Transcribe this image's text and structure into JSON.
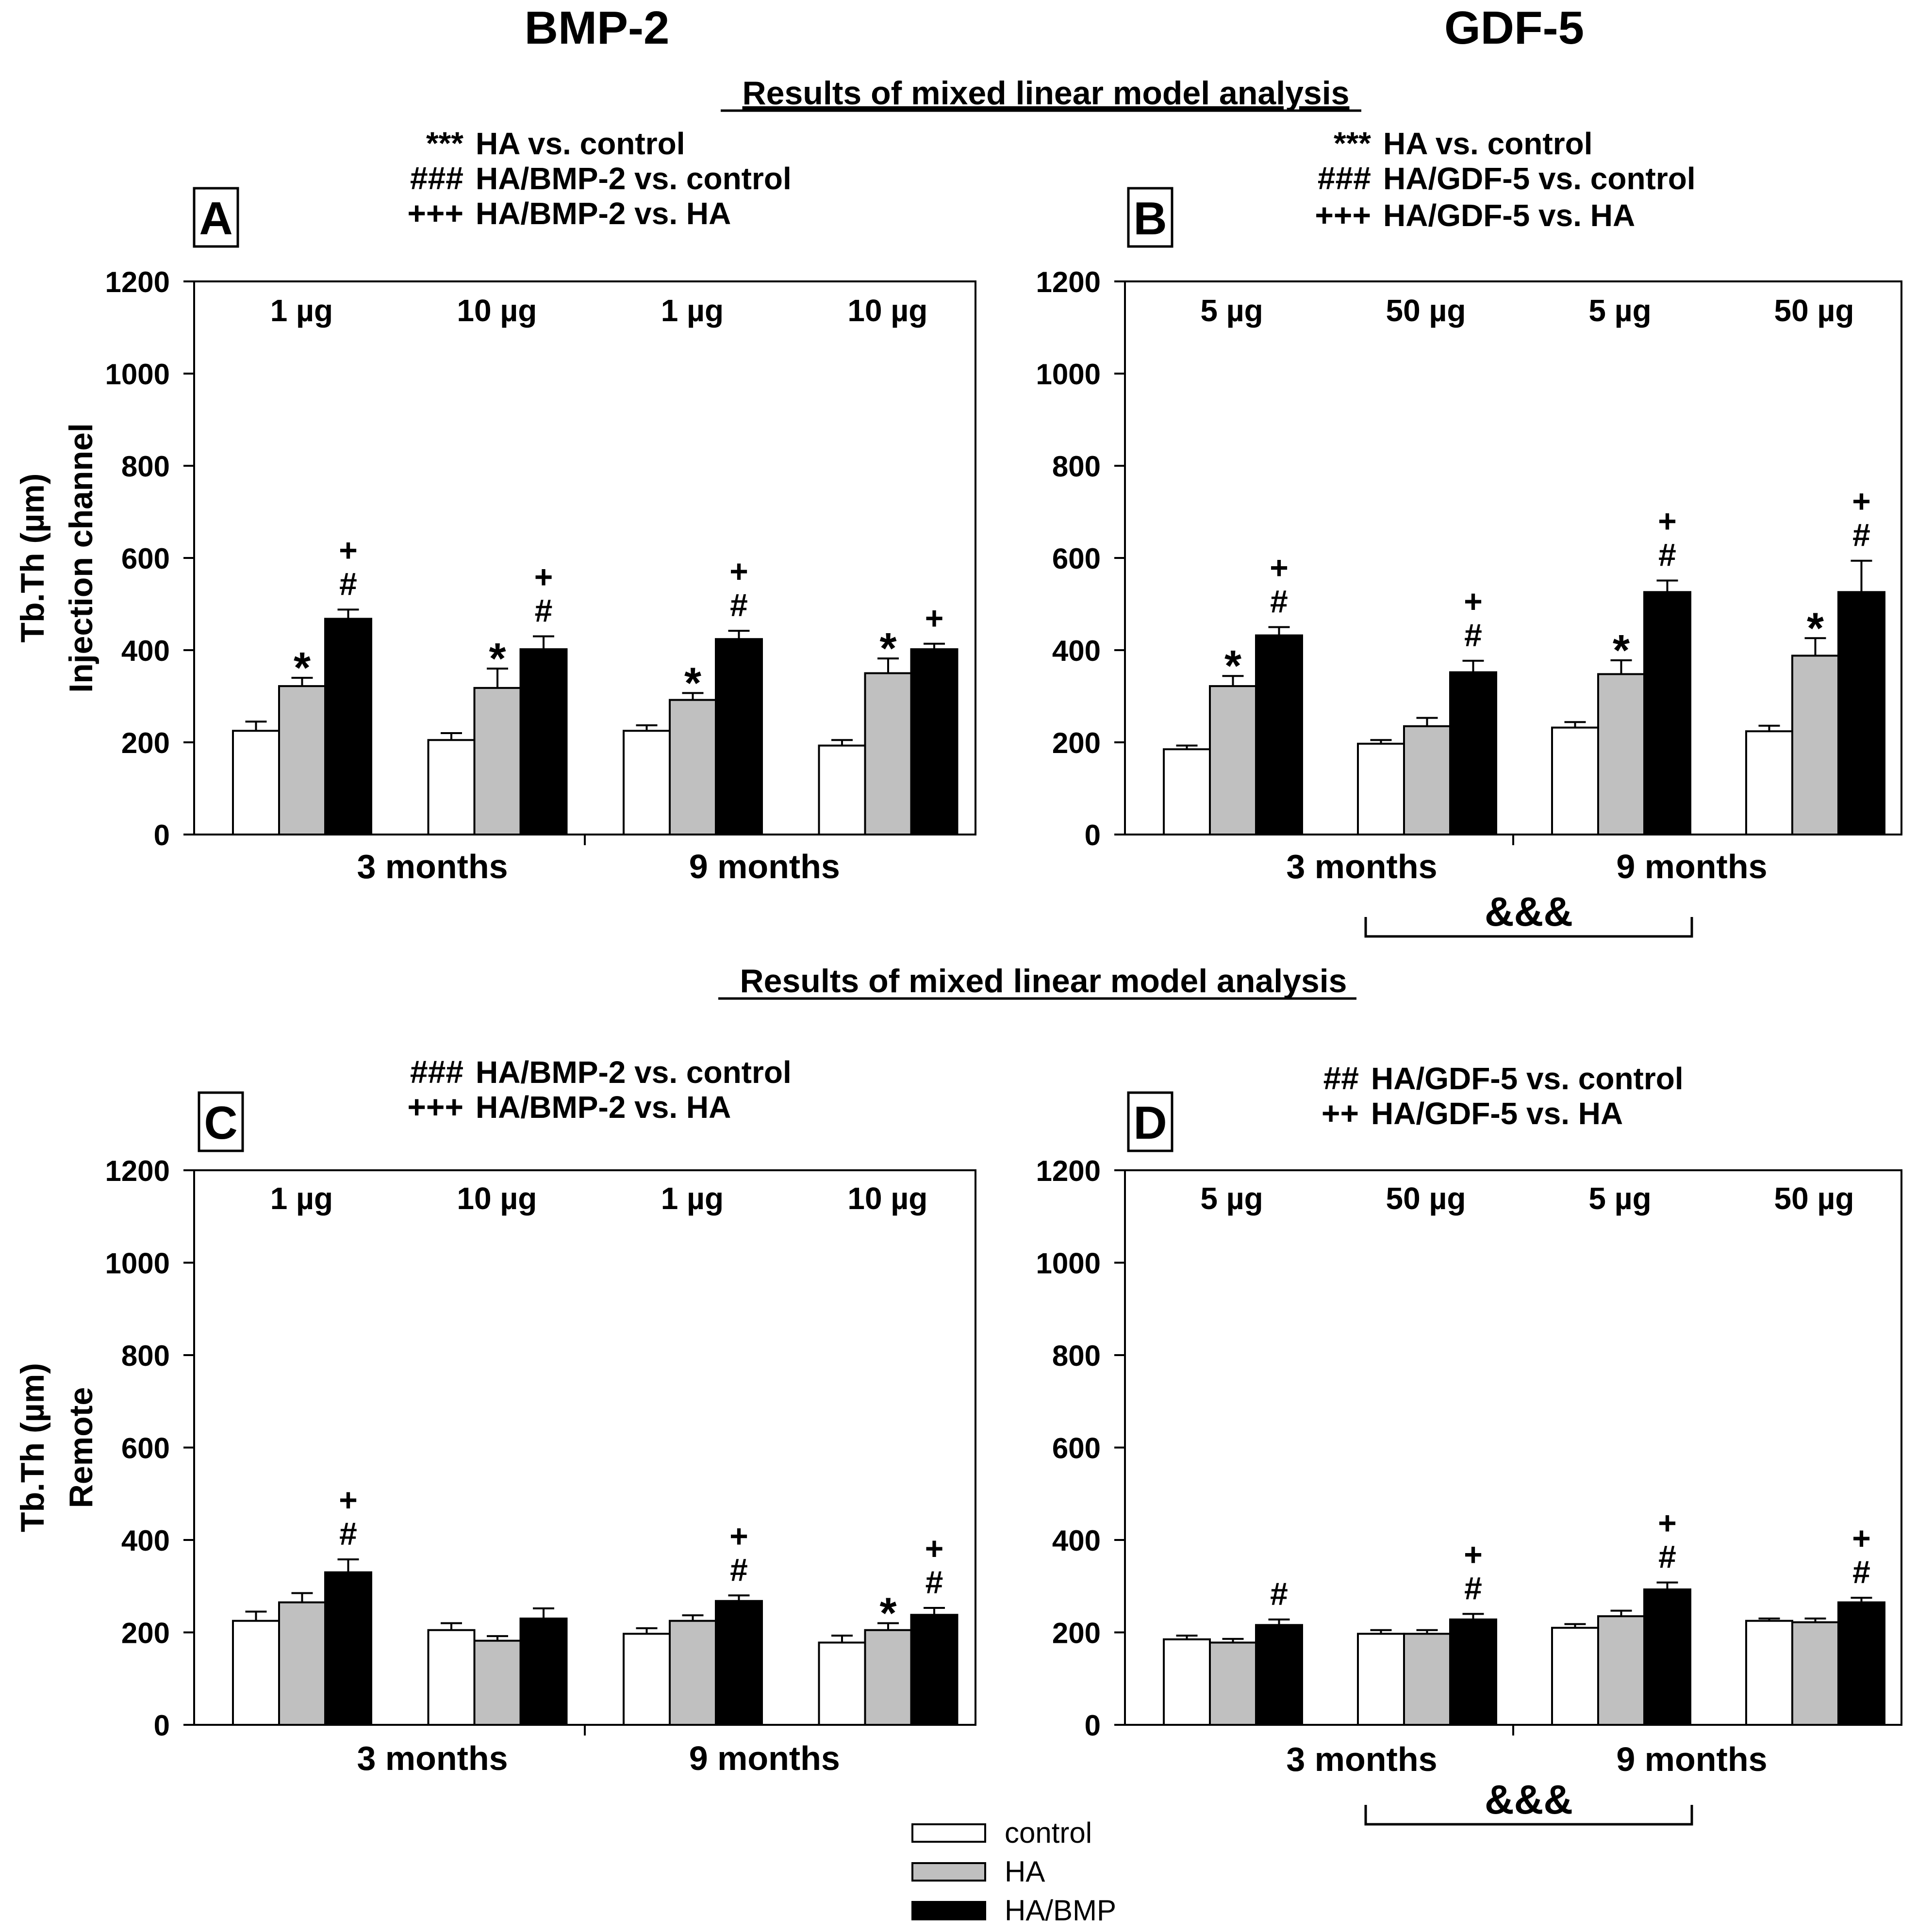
{
  "figure": {
    "column_titles": [
      "BMP-2",
      "GDF-5"
    ],
    "mixed_model_heading": "Results of mixed linear model analysis",
    "legend": [
      {
        "label": "control",
        "color": "#ffffff"
      },
      {
        "label": "HA",
        "color": "#c0c0c0"
      },
      {
        "label": "HA/BMP",
        "color": "#000000"
      }
    ]
  },
  "chart_data": [
    {
      "panel": "A",
      "type": "bar",
      "ylabel": [
        "Tb.Th (µm)",
        "Injection channel"
      ],
      "ylim": [
        0,
        1200
      ],
      "yticks": [
        0,
        200,
        400,
        600,
        800,
        1000,
        1200
      ],
      "groups": [
        "3 months",
        "9 months"
      ],
      "doses": [
        "1 µg",
        "10 µg",
        "1 µg",
        "10 µg"
      ],
      "series": [
        {
          "name": "control",
          "values": [
            225,
            205,
            225,
            193
          ],
          "errors": [
            20,
            15,
            12,
            12
          ]
        },
        {
          "name": "HA",
          "values": [
            322,
            318,
            292,
            350
          ],
          "errors": [
            18,
            42,
            15,
            32
          ]
        },
        {
          "name": "HA/BMP",
          "values": [
            468,
            402,
            424,
            402
          ],
          "errors": [
            20,
            28,
            18,
            12
          ]
        }
      ],
      "markers": [
        {
          "cluster": 0,
          "series": "HA",
          "text": [
            "*"
          ]
        },
        {
          "cluster": 0,
          "series": "HA/BMP",
          "text": [
            "+",
            "#"
          ]
        },
        {
          "cluster": 1,
          "series": "HA",
          "text": [
            "*"
          ]
        },
        {
          "cluster": 1,
          "series": "HA/BMP",
          "text": [
            "+",
            "#"
          ]
        },
        {
          "cluster": 2,
          "series": "HA",
          "text": [
            "*"
          ]
        },
        {
          "cluster": 2,
          "series": "HA/BMP",
          "text": [
            "+",
            "#"
          ]
        },
        {
          "cluster": 3,
          "series": "HA",
          "text": [
            "*"
          ]
        },
        {
          "cluster": 3,
          "series": "HA/BMP",
          "text": [
            "+"
          ]
        }
      ],
      "stats": [
        {
          "symbol": "***",
          "text": "HA vs. control"
        },
        {
          "symbol": "###",
          "text": "HA/BMP-2 vs. control"
        },
        {
          "symbol": "+++",
          "text": "HA/BMP-2 vs. HA"
        }
      ],
      "bracket": null
    },
    {
      "panel": "B",
      "type": "bar",
      "ylabel": [],
      "ylim": [
        0,
        1200
      ],
      "yticks": [
        0,
        200,
        400,
        600,
        800,
        1000,
        1200
      ],
      "groups": [
        "3 months",
        "9 months"
      ],
      "doses": [
        "5 µg",
        "50 µg",
        "5 µg",
        "50 µg"
      ],
      "series": [
        {
          "name": "control",
          "values": [
            185,
            197,
            232,
            224
          ],
          "errors": [
            8,
            8,
            12,
            12
          ]
        },
        {
          "name": "HA",
          "values": [
            322,
            235,
            348,
            388
          ],
          "errors": [
            22,
            18,
            30,
            38
          ]
        },
        {
          "name": "HA/BMP",
          "values": [
            432,
            352,
            526,
            526
          ],
          "errors": [
            18,
            25,
            25,
            68
          ]
        }
      ],
      "markers": [
        {
          "cluster": 0,
          "series": "HA",
          "text": [
            "*"
          ]
        },
        {
          "cluster": 0,
          "series": "HA/BMP",
          "text": [
            "+",
            "#"
          ]
        },
        {
          "cluster": 1,
          "series": "HA/BMP",
          "text": [
            "+",
            "#"
          ]
        },
        {
          "cluster": 2,
          "series": "HA",
          "text": [
            "*"
          ]
        },
        {
          "cluster": 2,
          "series": "HA/BMP",
          "text": [
            "+",
            "#"
          ]
        },
        {
          "cluster": 3,
          "series": "HA",
          "text": [
            "*"
          ]
        },
        {
          "cluster": 3,
          "series": "HA/BMP",
          "text": [
            "+",
            "#"
          ]
        }
      ],
      "stats": [
        {
          "symbol": "***",
          "text": "HA vs. control"
        },
        {
          "symbol": "###",
          "text": "HA/GDF-5 vs. control"
        },
        {
          "symbol": "+++",
          "text": "HA/GDF-5 vs. HA"
        }
      ],
      "bracket": "&&&"
    },
    {
      "panel": "C",
      "type": "bar",
      "ylabel": [
        "Tb.Th (µm)",
        "Remote"
      ],
      "ylim": [
        0,
        1200
      ],
      "yticks": [
        0,
        200,
        400,
        600,
        800,
        1000,
        1200
      ],
      "groups": [
        "3 months",
        "9 months"
      ],
      "doses": [
        "1 µg",
        "10 µg",
        "1 µg",
        "10 µg"
      ],
      "series": [
        {
          "name": "control",
          "values": [
            225,
            205,
            197,
            178
          ],
          "errors": [
            20,
            15,
            12,
            15
          ]
        },
        {
          "name": "HA",
          "values": [
            265,
            182,
            225,
            205
          ],
          "errors": [
            20,
            10,
            12,
            15
          ]
        },
        {
          "name": "HA/BMP",
          "values": [
            330,
            230,
            268,
            238
          ],
          "errors": [
            28,
            22,
            12,
            15
          ]
        }
      ],
      "markers": [
        {
          "cluster": 0,
          "series": "HA/BMP",
          "text": [
            "+",
            "#"
          ]
        },
        {
          "cluster": 2,
          "series": "HA/BMP",
          "text": [
            "+",
            "#"
          ]
        },
        {
          "cluster": 3,
          "series": "HA",
          "text": [
            "*"
          ]
        },
        {
          "cluster": 3,
          "series": "HA/BMP",
          "text": [
            "+",
            "#"
          ]
        }
      ],
      "stats": [
        {
          "symbol": "###",
          "text": "HA/BMP-2 vs. control"
        },
        {
          "symbol": "+++",
          "text": "HA/BMP-2 vs. HA"
        }
      ],
      "bracket": null
    },
    {
      "panel": "D",
      "type": "bar",
      "ylabel": [],
      "ylim": [
        0,
        1200
      ],
      "yticks": [
        0,
        200,
        400,
        600,
        800,
        1000,
        1200
      ],
      "groups": [
        "3 months",
        "9 months"
      ],
      "doses": [
        "5 µg",
        "50 µg",
        "5 µg",
        "50 µg"
      ],
      "series": [
        {
          "name": "control",
          "values": [
            185,
            197,
            210,
            225
          ],
          "errors": [
            8,
            8,
            8,
            5
          ]
        },
        {
          "name": "HA",
          "values": [
            178,
            197,
            235,
            222
          ],
          "errors": [
            8,
            8,
            12,
            8
          ]
        },
        {
          "name": "HA/BMP",
          "values": [
            216,
            228,
            293,
            265
          ],
          "errors": [
            12,
            12,
            15,
            10
          ]
        }
      ],
      "markers": [
        {
          "cluster": 0,
          "series": "HA/BMP",
          "text": [
            "#"
          ]
        },
        {
          "cluster": 1,
          "series": "HA/BMP",
          "text": [
            "+",
            "#"
          ]
        },
        {
          "cluster": 2,
          "series": "HA/BMP",
          "text": [
            "+",
            "#"
          ]
        },
        {
          "cluster": 3,
          "series": "HA/BMP",
          "text": [
            "+",
            "#"
          ]
        }
      ],
      "stats": [
        {
          "symbol": "##",
          "text": "HA/GDF-5 vs. control"
        },
        {
          "symbol": "++",
          "text": "HA/GDF-5 vs. HA"
        }
      ],
      "bracket": "&&&"
    }
  ]
}
